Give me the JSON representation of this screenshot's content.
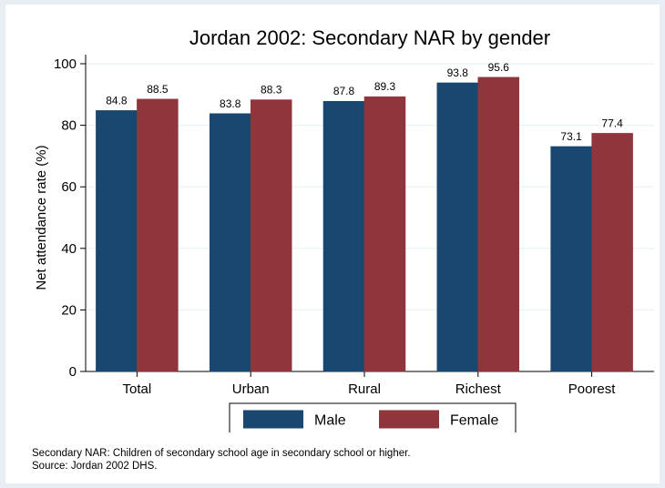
{
  "chart_data": {
    "type": "bar",
    "title": "Jordan 2002: Secondary NAR by gender",
    "xlabel": "",
    "ylabel": "Net attendance rate (%)",
    "ylim": [
      0,
      100
    ],
    "yticks": [
      0,
      20,
      40,
      60,
      80,
      100
    ],
    "categories": [
      "Total",
      "Urban",
      "Rural",
      "Richest",
      "Poorest"
    ],
    "series": [
      {
        "name": "Male",
        "color": "#1a476f",
        "values": [
          84.8,
          83.8,
          87.8,
          93.8,
          73.1
        ]
      },
      {
        "name": "Female",
        "color": "#90353b",
        "values": [
          88.5,
          88.3,
          89.3,
          95.6,
          77.4
        ]
      }
    ],
    "data_labels": true,
    "grid": true,
    "legend_position": "bottom"
  },
  "notes": {
    "line1": "Secondary NAR: Children of secondary school age in secondary school or higher.",
    "line2": "Source: Jordan 2002 DHS."
  }
}
